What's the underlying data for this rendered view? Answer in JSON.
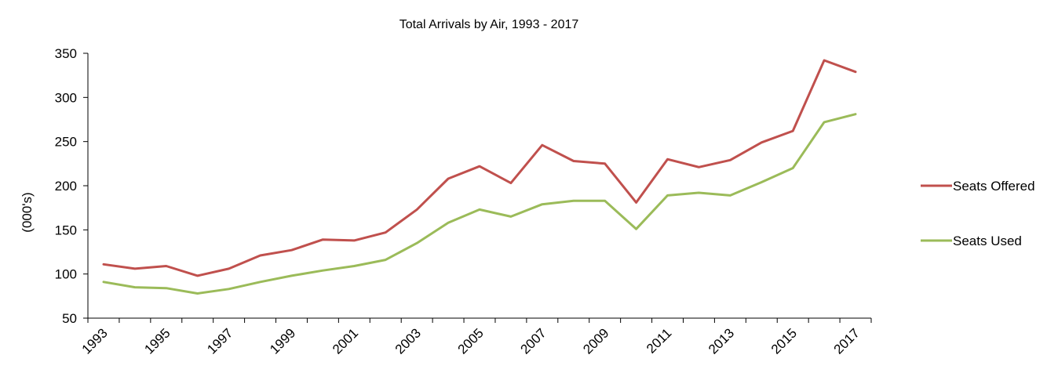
{
  "chart_data": {
    "type": "line",
    "title": "Total Arrivals by Air, 1993 - 2017",
    "xlabel": "",
    "ylabel": "(000's)",
    "x": [
      1993,
      1994,
      1995,
      1996,
      1997,
      1998,
      1999,
      2000,
      2001,
      2002,
      2003,
      2004,
      2005,
      2006,
      2007,
      2008,
      2009,
      2010,
      2011,
      2012,
      2013,
      2014,
      2015,
      2016,
      2017
    ],
    "x_tick_labels": [
      "1993",
      "1995",
      "1997",
      "1999",
      "2001",
      "2003",
      "2005",
      "2007",
      "2009",
      "2011",
      "2013",
      "2015",
      "2017"
    ],
    "ylim": [
      50,
      350
    ],
    "y_ticks": [
      50,
      100,
      150,
      200,
      250,
      300,
      350
    ],
    "grid": false,
    "legend_position": "right",
    "series": [
      {
        "name": "Seats Offered",
        "color": "#C0504D",
        "values": [
          111,
          106,
          109,
          98,
          106,
          121,
          127,
          139,
          138,
          147,
          173,
          208,
          222,
          203,
          246,
          228,
          225,
          181,
          230,
          221,
          229,
          249,
          262,
          342,
          329
        ]
      },
      {
        "name": "Seats Used",
        "color": "#9BBB59",
        "values": [
          91,
          85,
          84,
          78,
          83,
          91,
          98,
          104,
          109,
          116,
          135,
          158,
          173,
          165,
          179,
          183,
          183,
          151,
          189,
          192,
          189,
          204,
          220,
          272,
          281
        ]
      }
    ]
  }
}
